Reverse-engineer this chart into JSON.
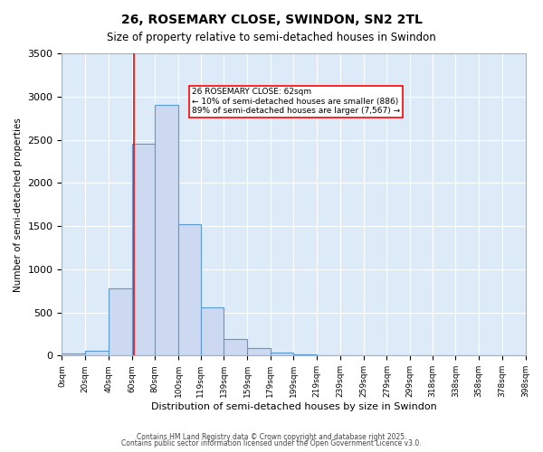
{
  "title1": "26, ROSEMARY CLOSE, SWINDON, SN2 2TL",
  "title2": "Size of property relative to semi-detached houses in Swindon",
  "xlabel": "Distribution of semi-detached houses by size in Swindon",
  "ylabel": "Number of semi-detached properties",
  "bin_labels": [
    "0sqm",
    "20sqm",
    "40sqm",
    "60sqm",
    "80sqm",
    "100sqm",
    "119sqm",
    "139sqm",
    "159sqm",
    "179sqm",
    "199sqm",
    "219sqm",
    "239sqm",
    "259sqm",
    "279sqm",
    "299sqm",
    "318sqm",
    "338sqm",
    "358sqm",
    "378sqm",
    "398sqm"
  ],
  "bin_edges": [
    0,
    20,
    40,
    60,
    80,
    100,
    119,
    139,
    159,
    179,
    199,
    219,
    239,
    259,
    279,
    299,
    318,
    338,
    358,
    378,
    398
  ],
  "bar_values": [
    20,
    55,
    775,
    2450,
    2900,
    1520,
    555,
    195,
    90,
    35,
    15,
    5,
    5,
    0,
    0,
    0,
    0,
    0,
    0,
    0
  ],
  "bar_color": "#ccd9f0",
  "bar_edge_color": "#5b9bd5",
  "annotation_box_text": "26 ROSEMARY CLOSE: 62sqm\n← 10% of semi-detached houses are smaller (886)\n89% of semi-detached houses are larger (7,567) →",
  "property_line_x": 62,
  "ylim": [
    0,
    3500
  ],
  "yticks": [
    0,
    500,
    1000,
    1500,
    2000,
    2500,
    3000,
    3500
  ],
  "background_color": "#ddeaf8",
  "grid_color": "#ffffff",
  "footer1": "Contains HM Land Registry data © Crown copyright and database right 2025.",
  "footer2": "Contains public sector information licensed under the Open Government Licence v3.0."
}
